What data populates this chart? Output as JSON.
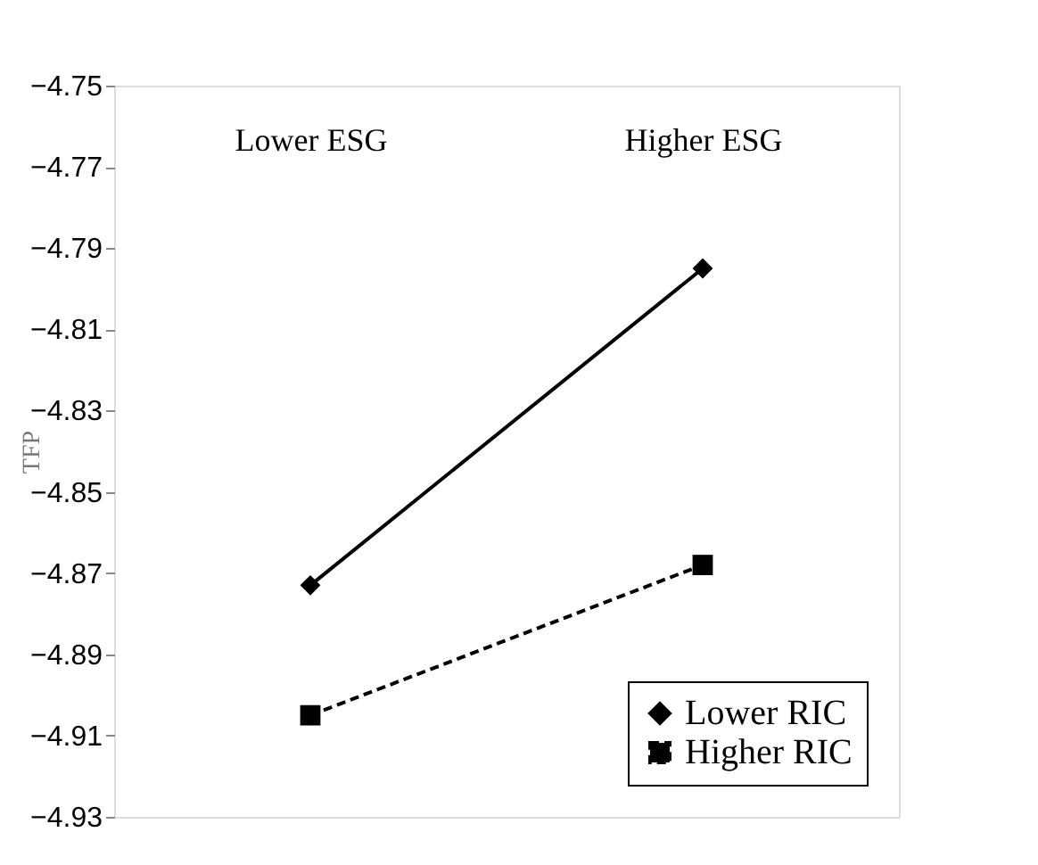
{
  "chart_data": {
    "type": "line",
    "ylabel": "TFP",
    "categories": [
      "Lower ESG",
      "Higher ESG"
    ],
    "series": [
      {
        "name": "Lower RIC",
        "color": "#000000",
        "values": [
          -4.873,
          -4.795
        ],
        "marker": "diamond",
        "line_style": "solid"
      },
      {
        "name": "Higher RIC",
        "color": "#000000",
        "values": [
          -4.905,
          -4.868
        ],
        "marker": "square",
        "line_style": "dashed"
      }
    ],
    "ylim": [
      -4.93,
      -4.75
    ],
    "yticks": [
      -4.93,
      -4.91,
      -4.89,
      -4.87,
      -4.85,
      -4.83,
      -4.81,
      -4.79,
      -4.77,
      -4.75
    ],
    "grid": false,
    "legend": "bottom right"
  }
}
